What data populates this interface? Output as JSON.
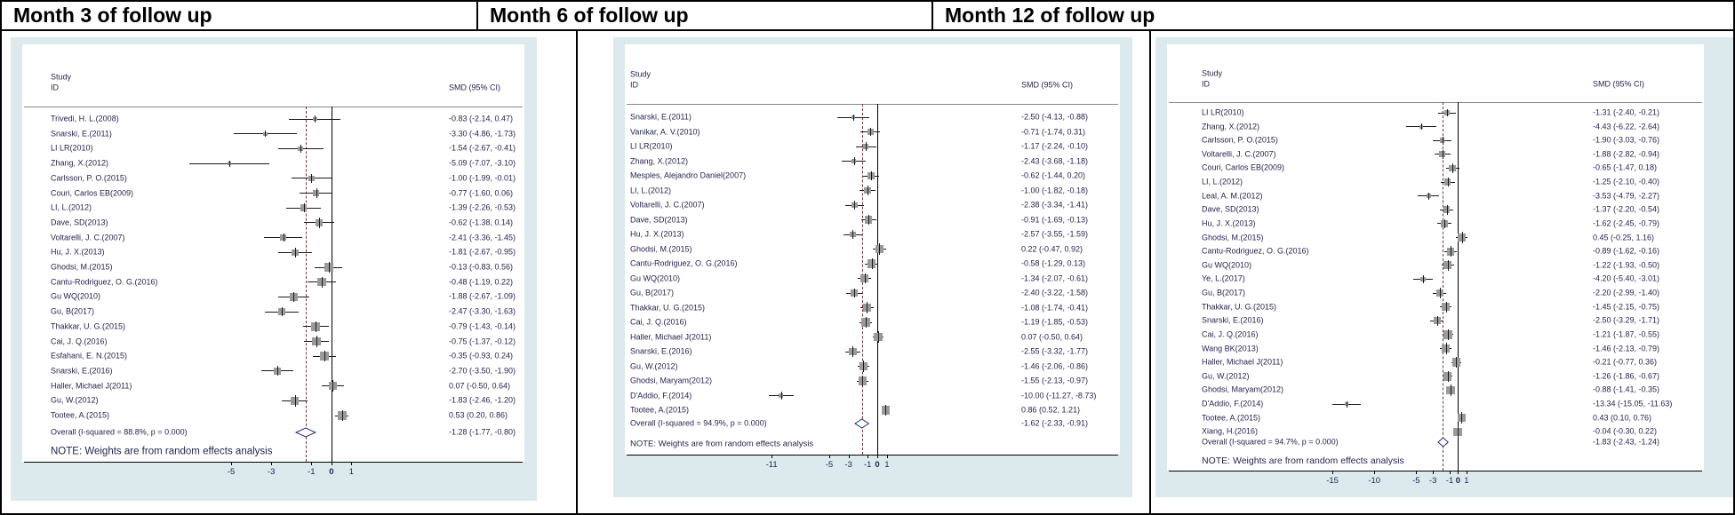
{
  "header": {
    "titles": [
      "Month 3 of follow up",
      "Month 6 of follow up",
      "Month 12 of follow up"
    ]
  },
  "colors": {
    "figure_bg": "#dce9ed",
    "plot_bg": "#ffffff",
    "text_navy": "#26264f",
    "ci_line": "#1a1a1a",
    "marker_gray": "#9a9a9a",
    "dashed_line": "#7e3030",
    "zero_line": "#000000",
    "diamond_outline": "#2a2a7a",
    "header_rule": "#8a8a8a"
  },
  "chart_data": [
    {
      "type": "scatter",
      "subtype": "forest-plot",
      "title": "Month 3 of follow up",
      "col_headers": {
        "study_line1": "Study",
        "study_line2": "ID",
        "effect": "SMD (95% CI)"
      },
      "xticks": [
        -5,
        -3,
        -1,
        0,
        1
      ],
      "xlim": [
        -7.8,
        2.4
      ],
      "null_line": 0,
      "note": "NOTE: Weights are from random effects analysis",
      "overall": {
        "label": "Overall  (I-squared = 88.8%, p = 0.000)",
        "smd": "-1.28 (-1.77, -0.80)"
      },
      "studies": [
        {
          "label": "Trivedi, H. L.(2008)",
          "smd": "-0.83 (-2.14, 0.47)"
        },
        {
          "label": "Snarski, E.(2011)",
          "smd": "-3.30 (-4.86, -1.73)"
        },
        {
          "label": "LI LR(2010)",
          "smd": "-1.54 (-2.67, -0.41)"
        },
        {
          "label": "Zhang, X.(2012)",
          "smd": "-5.09 (-7.07, -3.10)"
        },
        {
          "label": "Carlsson, P. O.(2015)",
          "smd": "-1.00 (-1.99, -0.01)"
        },
        {
          "label": "Couri, Carlos EB(2009)",
          "smd": "-0.77 (-1.60, 0.06)"
        },
        {
          "label": "LI, L.(2012)",
          "smd": "-1.39 (-2.26, -0.53)"
        },
        {
          "label": "Dave, SD(2013)",
          "smd": "-0.62 (-1.38, 0.14)"
        },
        {
          "label": "Voltarelli, J. C.(2007)",
          "smd": "-2.41 (-3.36, -1.45)"
        },
        {
          "label": "Hu, J. X.(2013)",
          "smd": "-1.81 (-2.67, -0.95)"
        },
        {
          "label": "Ghodsi, M.(2015)",
          "smd": "-0.13 (-0.83, 0.56)"
        },
        {
          "label": "Cantu-Rodriguez, O. G.(2016)",
          "smd": "-0.48 (-1.19, 0.22)"
        },
        {
          "label": "Gu WQ(2010)",
          "smd": "-1.88 (-2.67, -1.09)"
        },
        {
          "label": "Gu, B(2017)",
          "smd": "-2.47 (-3.30, -1.63)"
        },
        {
          "label": "Thakkar, U. G.(2015)",
          "smd": "-0.79 (-1.43, -0.14)"
        },
        {
          "label": "Cai, J. Q.(2016)",
          "smd": "-0.75 (-1.37, -0.12)"
        },
        {
          "label": "Esfahani, E. N.(2015)",
          "smd": "-0.35 (-0.93, 0.24)"
        },
        {
          "label": "Snarski, E.(2016)",
          "smd": "-2.70 (-3.50, -1.90)"
        },
        {
          "label": "Haller, Michael J(2011)",
          "smd": "0.07 (-0.50, 0.64)"
        },
        {
          "label": "Gu, W.(2012)",
          "smd": "-1.83 (-2.46, -1.20)"
        },
        {
          "label": "Tootee, A.(2015)",
          "smd": "0.53 (0.20, 0.86)"
        }
      ]
    },
    {
      "type": "scatter",
      "subtype": "forest-plot",
      "title": "Month 6 of follow up",
      "col_headers": {
        "study_line1": "Study",
        "study_line2": "ID",
        "effect": "SMD (95% CI)"
      },
      "xticks": [
        -11,
        -5,
        -3,
        -1,
        0,
        1
      ],
      "xlim": [
        -12.4,
        2.4
      ],
      "null_line": 0,
      "note": "NOTE: Weights are from random effects analysis",
      "overall": {
        "label": "Overall  (I-squared = 94.9%, p = 0.000)",
        "smd": "-1.62 (-2.33, -0.91)"
      },
      "studies": [
        {
          "label": "Snarski, E.(2011)",
          "smd": "-2.50 (-4.13, -0.88)"
        },
        {
          "label": "Vanikar, A. V.(2010)",
          "smd": "-0.71 (-1.74, 0.31)"
        },
        {
          "label": "LI LR(2010)",
          "smd": "-1.17 (-2.24, -0.10)"
        },
        {
          "label": "Zhang, X.(2012)",
          "smd": "-2.43 (-3.68, -1.18)"
        },
        {
          "label": "Mesples, Alejandro Daniel(2007)",
          "smd": "-0.62 (-1.44, 0.20)"
        },
        {
          "label": "LI, L.(2012)",
          "smd": "-1.00 (-1.82, -0.18)"
        },
        {
          "label": "Voltarelli, J. C.(2007)",
          "smd": "-2.38 (-3.34, -1.41)"
        },
        {
          "label": "Dave, SD(2013)",
          "smd": "-0.91 (-1.69, -0.13)"
        },
        {
          "label": "Hu, J. X.(2013)",
          "smd": "-2.57 (-3.55, -1.59)"
        },
        {
          "label": "Ghodsi, M.(2015)",
          "smd": "0.22 (-0.47, 0.92)"
        },
        {
          "label": "Cantu-Rodriguez, O. G.(2016)",
          "smd": "-0.58 (-1.29, 0.13)"
        },
        {
          "label": "Gu WQ(2010)",
          "smd": "-1.34 (-2.07, -0.61)"
        },
        {
          "label": "Gu, B(2017)",
          "smd": "-2.40 (-3.22, -1.58)"
        },
        {
          "label": "Thakkar, U. G.(2015)",
          "smd": "-1.08 (-1.74, -0.41)"
        },
        {
          "label": "Cai, J. Q.(2016)",
          "smd": "-1.19 (-1.85, -0.53)"
        },
        {
          "label": "Haller, Michael J(2011)",
          "smd": "0.07 (-0.50, 0.64)"
        },
        {
          "label": "Snarski, E.(2016)",
          "smd": "-2.55 (-3.32, -1.77)"
        },
        {
          "label": "Gu, W.(2012)",
          "smd": "-1.46 (-2.06, -0.86)"
        },
        {
          "label": "Ghodsi, Maryam(2012)",
          "smd": "-1.55 (-2.13, -0.97)"
        },
        {
          "label": "D'Addio, F.(2014)",
          "smd": "-10.00 (-11.27, -8.73)"
        },
        {
          "label": "Tootee, A.(2015)",
          "smd": "0.86 (0.52, 1.21)"
        }
      ]
    },
    {
      "type": "scatter",
      "subtype": "forest-plot",
      "title": "Month 12 of follow up",
      "col_headers": {
        "study_line1": "Study",
        "study_line2": "ID",
        "effect": "SMD (95% CI)"
      },
      "xticks": [
        -15,
        -10,
        -5,
        -3,
        -1,
        0,
        1
      ],
      "xlim": [
        -16.6,
        2.5
      ],
      "null_line": 0,
      "note": "NOTE: Weights are from random effects analysis",
      "overall": {
        "label": "Overall  (I-squared = 94.7%, p = 0.000)",
        "smd": "-1.83 (-2.43, -1.24)"
      },
      "studies": [
        {
          "label": "LI LR(2010)",
          "smd": "-1.31 (-2.40, -0.21)"
        },
        {
          "label": "Zhang, X.(2012)",
          "smd": "-4.43 (-6.22, -2.64)"
        },
        {
          "label": "Carlsson, P. O.(2015)",
          "smd": "-1.90 (-3.03, -0.76)"
        },
        {
          "label": "Voltarelli, J. C.(2007)",
          "smd": "-1.88 (-2.82, -0.94)"
        },
        {
          "label": "Couri, Carlos EB(2009)",
          "smd": "-0.65 (-1.47, 0.18)"
        },
        {
          "label": "LI, L.(2012)",
          "smd": "-1.25 (-2.10, -0.40)"
        },
        {
          "label": "Leal, A. M.(2012)",
          "smd": "-3.53 (-4.79, -2.27)"
        },
        {
          "label": "Dave, SD(2013)",
          "smd": "-1.37 (-2.20, -0.54)"
        },
        {
          "label": "Hu, J. X.(2013)",
          "smd": "-1.62 (-2.45, -0.79)"
        },
        {
          "label": "Ghodsi, M.(2015)",
          "smd": "0.45 (-0.25, 1.16)"
        },
        {
          "label": "Cantu-Rodriguez, O. G.(2016)",
          "smd": "-0.89 (-1.62, -0.16)"
        },
        {
          "label": "Gu WQ(2010)",
          "smd": "-1.22 (-1.93, -0.50)"
        },
        {
          "label": "Ye, L.(2017)",
          "smd": "-4.20 (-5.40, -3.01)"
        },
        {
          "label": "Gu, B(2017)",
          "smd": "-2.20 (-2.99, -1.40)"
        },
        {
          "label": "Thakkar, U. G.(2015)",
          "smd": "-1.45 (-2.15, -0.75)"
        },
        {
          "label": "Snarski, E.(2016)",
          "smd": "-2.50 (-3.29, -1.71)"
        },
        {
          "label": "Cai, J. Q.(2016)",
          "smd": "-1.21 (-1.87, -0.55)"
        },
        {
          "label": "Wang BK(2013)",
          "smd": "-1.46 (-2.13, -0.79)"
        },
        {
          "label": "Haller, Michael J(2011)",
          "smd": "-0.21 (-0.77, 0.36)"
        },
        {
          "label": "Gu, W.(2012)",
          "smd": "-1.26 (-1.86, -0.67)"
        },
        {
          "label": "Ghodsi, Maryam(2012)",
          "smd": "-0.88 (-1.41, -0.35)"
        },
        {
          "label": "D'Addio, F.(2014)",
          "smd": "-13.34 (-15.05, -11.63)"
        },
        {
          "label": "Tootee, A.(2015)",
          "smd": "0.43 (0.10, 0.76)"
        },
        {
          "label": "Xiang, H.(2016)",
          "smd": "-0.04 (-0.30, 0.22)"
        }
      ]
    }
  ]
}
